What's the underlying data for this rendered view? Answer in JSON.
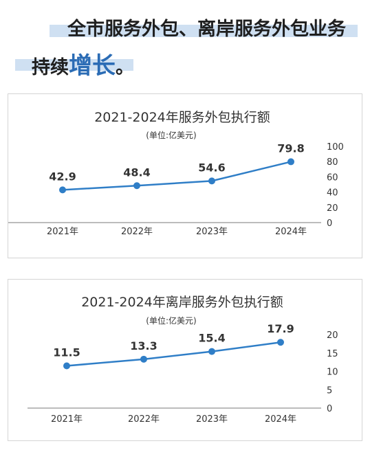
{
  "headline": {
    "line1": "全市服务外包、离岸服务外包业务",
    "line2_prefix": "持续",
    "line2_accent": "增长",
    "line2_suffix": "。"
  },
  "colors": {
    "line": "#2f7ec7",
    "marker": "#2f7ec7",
    "highlight": "#cfe0f2",
    "accent_text": "#2b6cb5"
  },
  "chart_data": [
    {
      "type": "line",
      "title": "2021-2024年服务外包执行额",
      "subtitle": "(单位:亿美元)",
      "categories": [
        "2021年",
        "2022年",
        "2023年",
        "2024年"
      ],
      "values": [
        42.9,
        48.4,
        54.6,
        79.8
      ],
      "data_labels": [
        "42.9",
        "48.4",
        "54.6",
        "79.8"
      ],
      "yticks": [
        0,
        20,
        40,
        60,
        80,
        100
      ],
      "ylim": [
        0,
        100
      ],
      "grid": false,
      "legend": "none"
    },
    {
      "type": "line",
      "title": "2021-2024年离岸服务外包执行额",
      "subtitle": "(单位:亿美元)",
      "categories": [
        "2021年",
        "2022年",
        "2023年",
        "2024年"
      ],
      "values": [
        11.5,
        13.3,
        15.4,
        17.9
      ],
      "data_labels": [
        "11.5",
        "13.3",
        "15.4",
        "17.9"
      ],
      "yticks": [
        0,
        5,
        10,
        15,
        20
      ],
      "ylim": [
        0,
        20
      ],
      "grid": false,
      "legend": "none"
    }
  ]
}
